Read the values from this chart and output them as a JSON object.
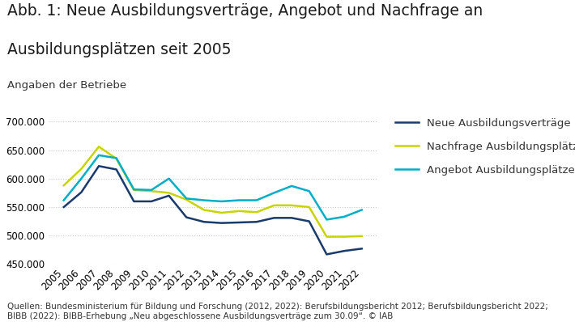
{
  "title_line1": "Abb. 1: Neue Ausbildungsverträge, Angebot und Nachfrage an",
  "title_line2": "Ausbildungsplätzen seit 2005",
  "subtitle": "Angaben der Betriebe",
  "footnote": "Quellen: Bundesministerium für Bildung und Forschung (2012, 2022): Berufsbildungsbericht 2012; Berufsbildungsbericht 2022;\nBIBB (2022): BIBB-Erhebung „Neu abgeschlossene Ausbildungsverträge zum 30.09“. © IAB",
  "years": [
    2005,
    2006,
    2007,
    2008,
    2009,
    2010,
    2011,
    2012,
    2013,
    2014,
    2015,
    2016,
    2017,
    2018,
    2019,
    2020,
    2021,
    2022
  ],
  "neue_vertraege": [
    550000,
    576000,
    622000,
    616000,
    560000,
    560000,
    570000,
    532000,
    524000,
    522000,
    523000,
    524000,
    531000,
    531000,
    525000,
    467000,
    473000,
    477000
  ],
  "nachfrage": [
    588000,
    617000,
    656000,
    635000,
    580000,
    578000,
    575000,
    563000,
    545000,
    540000,
    543000,
    541000,
    553000,
    553000,
    550000,
    498000,
    498000,
    499000
  ],
  "angebot": [
    562000,
    600000,
    641000,
    636000,
    581000,
    580000,
    600000,
    565000,
    562000,
    560000,
    562000,
    562000,
    575000,
    587000,
    578000,
    528000,
    533000,
    545000
  ],
  "color_vertraege": "#1a3a6b",
  "color_nachfrage": "#c8d400",
  "color_angebot": "#00aec7",
  "legend_labels": [
    "Neue Ausbildungsverträge",
    "Nachfrage Ausbildungsplätze",
    "Angebot Ausbildungsplätze"
  ],
  "ylim": [
    450000,
    710000
  ],
  "yticks": [
    450000,
    500000,
    550000,
    600000,
    650000,
    700000
  ],
  "background_color": "#ffffff",
  "grid_color": "#c8c8c8",
  "title_fontsize": 13.5,
  "subtitle_fontsize": 9.5,
  "tick_fontsize": 8.5,
  "legend_fontsize": 9.5,
  "footnote_fontsize": 7.5
}
